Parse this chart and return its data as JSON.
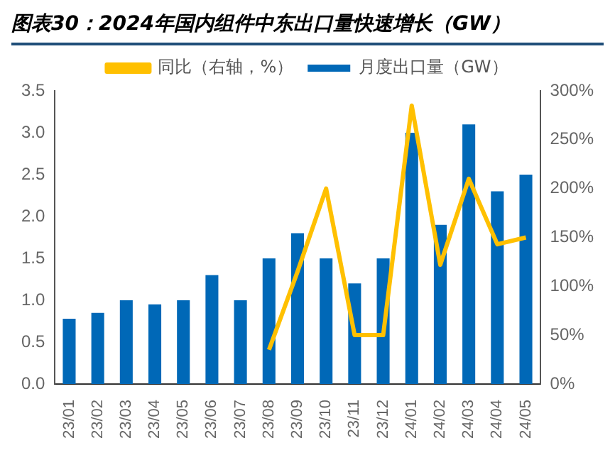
{
  "chart_data": {
    "type": "bar",
    "title": "图表30：2024年国内组件中东出口量快速增长（GW）",
    "categories": [
      "23/01",
      "23/02",
      "23/03",
      "23/04",
      "23/05",
      "23/06",
      "23/07",
      "23/08",
      "23/09",
      "23/10",
      "23/11",
      "23/12",
      "24/01",
      "24/02",
      "24/03",
      "24/04",
      "24/05"
    ],
    "series": [
      {
        "name": "月度出口量（GW）",
        "color": "#0068b7",
        "values": [
          0.78,
          0.85,
          1.0,
          0.95,
          1.0,
          1.3,
          1.0,
          1.5,
          1.8,
          1.5,
          1.2,
          1.5,
          3.0,
          1.9,
          3.1,
          2.3,
          2.5
        ]
      },
      {
        "name": "同比（右轴，%）",
        "type": "line",
        "axis": "y2",
        "color": "#ffc000",
        "values": [
          null,
          null,
          null,
          null,
          null,
          null,
          null,
          35,
          115,
          200,
          50,
          50,
          285,
          122,
          210,
          143,
          150
        ]
      }
    ],
    "ylim": [
      0,
      3.5
    ],
    "yticks": [
      {
        "value": 0,
        "label": "0.0"
      },
      {
        "value": 0.5,
        "label": "0.5"
      },
      {
        "value": 1,
        "label": "1.0"
      },
      {
        "value": 1.5,
        "label": "1.5"
      },
      {
        "value": 2,
        "label": "2.0"
      },
      {
        "value": 2.5,
        "label": "2.5"
      },
      {
        "value": 3,
        "label": "3.0"
      },
      {
        "value": 3.5,
        "label": "3.5"
      }
    ],
    "y2lim": [
      0,
      300
    ],
    "y2ticks": [
      {
        "value": 0,
        "label": "0%"
      },
      {
        "value": 50,
        "label": "50%"
      },
      {
        "value": 100,
        "label": "100%"
      },
      {
        "value": 150,
        "label": "150%"
      },
      {
        "value": 200,
        "label": "200%"
      },
      {
        "value": 250,
        "label": "250%"
      },
      {
        "value": 300,
        "label": "300%"
      }
    ],
    "legend": "top",
    "grid": false
  }
}
